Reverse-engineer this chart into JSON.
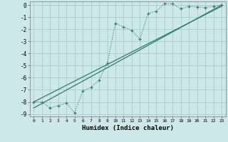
{
  "xlabel": "Humidex (Indice chaleur)",
  "background_color": "#cce8e8",
  "grid_color": "#aacccc",
  "line_color": "#2e7d6e",
  "xlim": [
    -0.5,
    23.5
  ],
  "ylim": [
    -9.2,
    0.3
  ],
  "xticks": [
    0,
    1,
    2,
    3,
    4,
    5,
    6,
    7,
    8,
    9,
    10,
    11,
    12,
    13,
    14,
    15,
    16,
    17,
    18,
    19,
    20,
    21,
    22,
    23
  ],
  "yticks": [
    0,
    -1,
    -2,
    -3,
    -4,
    -5,
    -6,
    -7,
    -8,
    -9
  ],
  "series1_x": [
    0,
    1,
    2,
    3,
    4,
    5,
    6,
    7,
    8,
    9,
    10,
    11,
    12,
    13,
    14,
    15,
    16,
    17,
    18,
    19,
    20,
    21,
    22,
    23
  ],
  "series1_y": [
    -8.0,
    -8.0,
    -8.5,
    -8.3,
    -8.1,
    -8.9,
    -7.1,
    -6.8,
    -6.2,
    -4.8,
    -1.5,
    -1.8,
    -2.1,
    -2.8,
    -0.7,
    -0.5,
    0.1,
    0.1,
    -0.3,
    -0.1,
    -0.15,
    -0.2,
    -0.1,
    0.0
  ],
  "series2_x": [
    0,
    23
  ],
  "series2_y": [
    -8.5,
    0.0
  ],
  "series3_x": [
    0,
    23
  ],
  "series3_y": [
    -8.0,
    -0.1
  ]
}
